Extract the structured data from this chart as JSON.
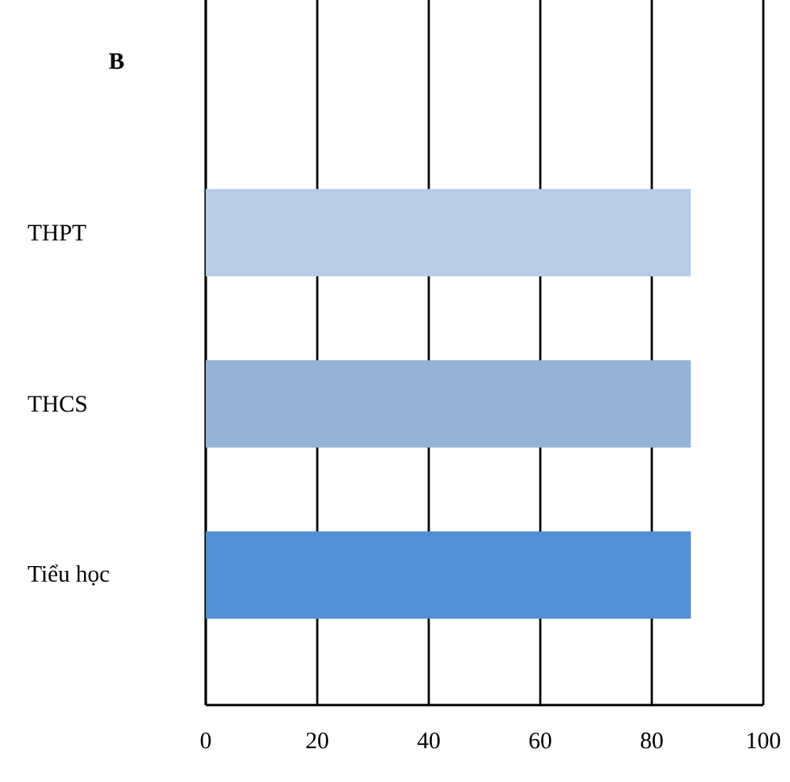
{
  "chart_data": {
    "type": "bar",
    "orientation": "horizontal",
    "title": "B",
    "categories": [
      "THPT",
      "THCS",
      "Tiểu học"
    ],
    "values": [
      87,
      87,
      87
    ],
    "colors": [
      "#b8cce4",
      "#95b3d7",
      "#538fd4"
    ],
    "xlim": [
      0,
      100
    ],
    "xticks": [
      0,
      20,
      40,
      60,
      80,
      100
    ],
    "grid": "x"
  }
}
